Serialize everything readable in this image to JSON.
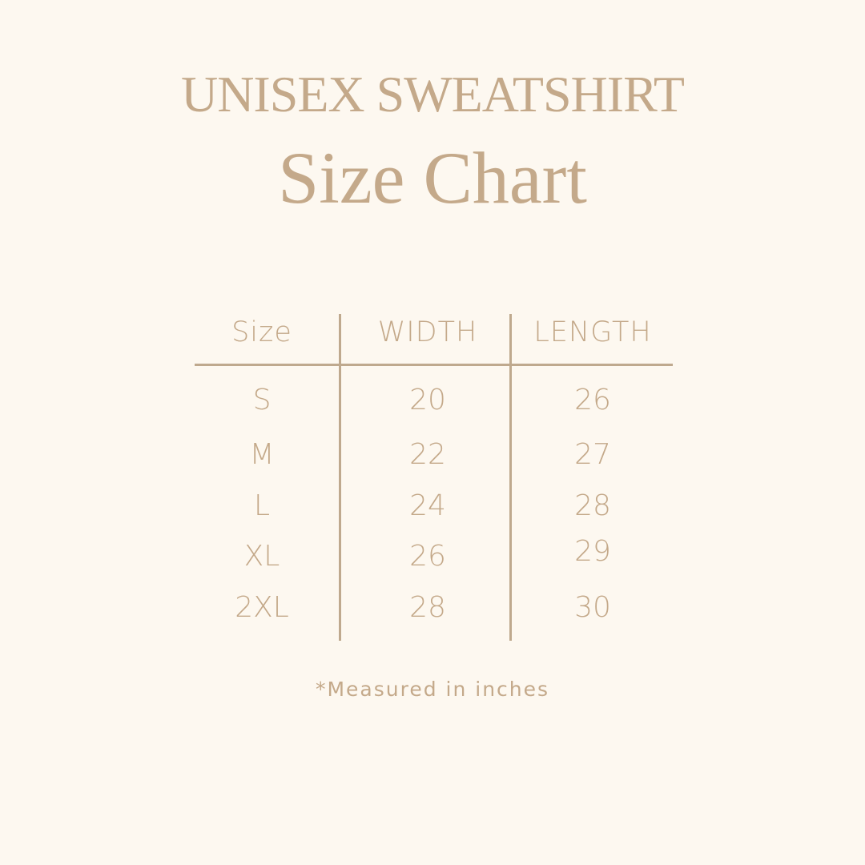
{
  "title": "UNISEX SWEATSHIRT",
  "subtitle": "Size Chart",
  "colors": {
    "background": "#fdf8f0",
    "text": "#c4a98a",
    "lines": "#bfa98e"
  },
  "table": {
    "headers": [
      "Size",
      "WIDTH",
      "LENGTH"
    ],
    "rows": [
      [
        "S",
        "20",
        "26"
      ],
      [
        "M",
        "22",
        "27"
      ],
      [
        "L",
        "24",
        "28"
      ],
      [
        "XL",
        "26",
        "29"
      ],
      [
        "2XL",
        "28",
        "30"
      ]
    ]
  },
  "footnote": "*Measured in inches"
}
